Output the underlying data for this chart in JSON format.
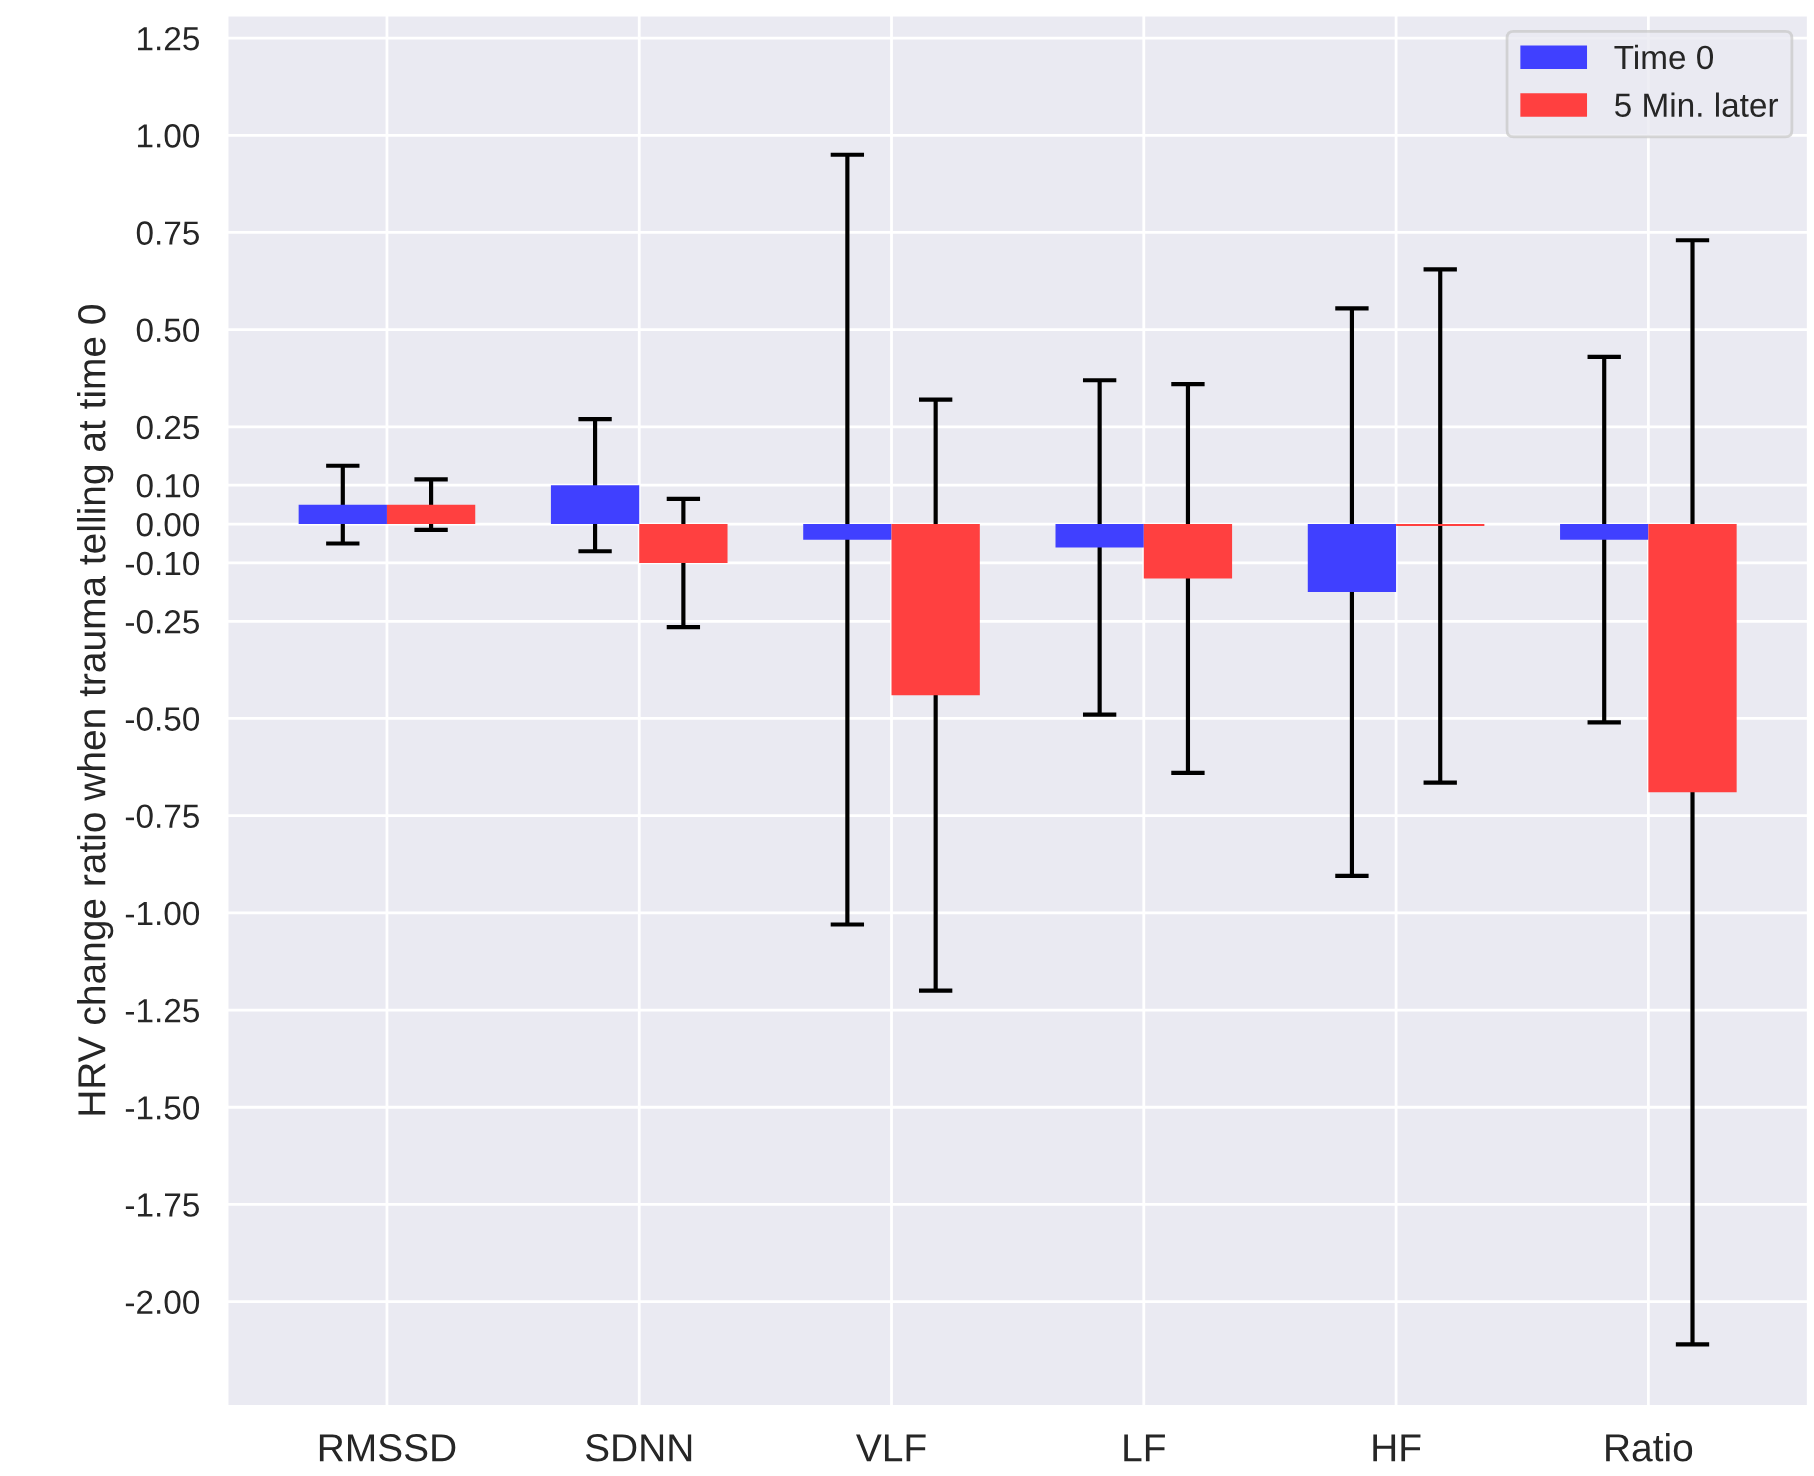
{
  "chart_data": {
    "type": "bar",
    "ylabel": "HRV change ratio when trauma telling at time 0",
    "categories": [
      "RMSSD",
      "SDNN",
      "VLF",
      "LF",
      "HF",
      "Ratio"
    ],
    "series": [
      {
        "name": "Time 0",
        "color": "#4040ff",
        "values": [
          0.05,
          0.1,
          -0.04,
          -0.06,
          -0.175,
          -0.04
        ],
        "errors": [
          0.1,
          0.17,
          0.99,
          0.43,
          0.73,
          0.47
        ]
      },
      {
        "name": "5 Min. later",
        "color": "#ff4040",
        "values": [
          0.05,
          -0.1,
          -0.44,
          -0.14,
          -0.005,
          -0.69
        ],
        "errors": [
          0.065,
          0.165,
          0.76,
          0.5,
          0.66,
          1.42
        ]
      }
    ],
    "ylim": [
      -2.27,
      1.31
    ],
    "yticks": [
      1.25,
      {
        "value": 1.0,
        "label": "1.00"
      },
      0.75,
      {
        "value": 0.5,
        "label": "0.50"
      },
      0.25,
      {
        "value": 0.1,
        "label": "0.10"
      },
      {
        "value": 0.0,
        "label": "0.00"
      },
      {
        "value": -0.1,
        "label": "-0.10"
      },
      -0.25,
      {
        "value": -0.5,
        "label": "-0.50"
      },
      -0.75,
      {
        "value": -1.0,
        "label": "-1.00"
      },
      -1.25,
      {
        "value": -1.5,
        "label": "-1.50"
      },
      -1.75,
      {
        "value": -2.0,
        "label": "-2.00"
      }
    ],
    "grid": true,
    "legend": "top right"
  }
}
